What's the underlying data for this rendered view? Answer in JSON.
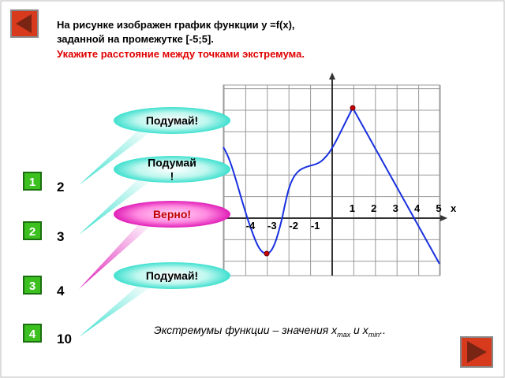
{
  "question": {
    "lines": [
      "На рисунке изображен график функции y =f(x),",
      "заданной на промежутке [-5;5]."
    ],
    "task": "Укажите расстояние между точками экстремума."
  },
  "answers": [
    {
      "number": "1",
      "text": "2",
      "feedback": [
        "Подумай!"
      ]
    },
    {
      "number": "2",
      "text": "3",
      "feedback": [
        "Подумай",
        "!"
      ]
    },
    {
      "number": "3",
      "text": "4",
      "feedback": [
        "Верно!"
      ]
    },
    {
      "number": "4",
      "text": "10",
      "feedback": [
        "Подумай!"
      ]
    }
  ],
  "graph": {
    "x_positive": [
      "1",
      "2",
      "3",
      "4",
      "5"
    ],
    "x_negative": [
      "-4",
      "-3",
      "-2",
      "-1"
    ],
    "x_axis_label": "x"
  },
  "hint": {
    "text1": "Экстремумы функции – значения x",
    "sub1": "max",
    "text2": " и x",
    "sub2": "min",
    "text3": ".."
  }
}
